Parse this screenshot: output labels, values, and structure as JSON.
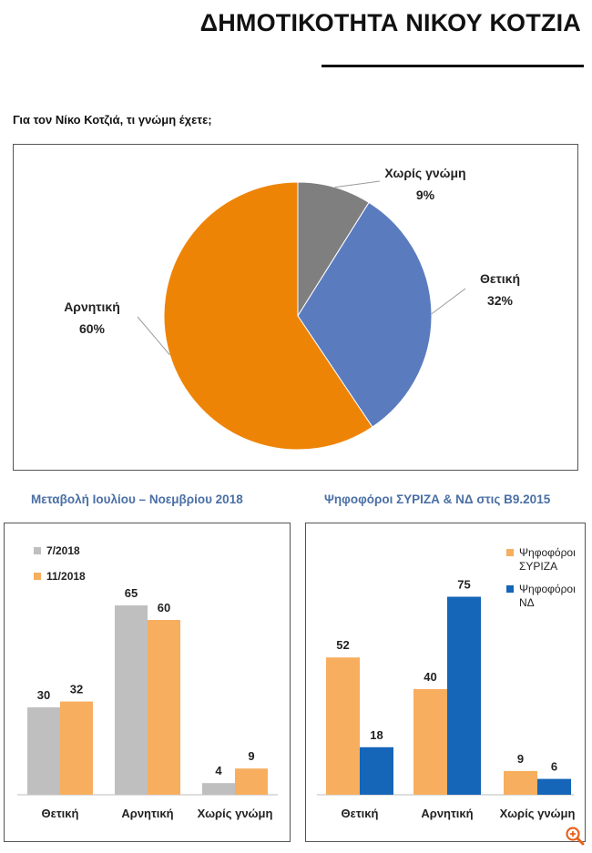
{
  "page": {
    "title": "ΔΗΜΟΤΙΚΟΤΗΤΑ ΝΙΚΟΥ ΚΟΤΖΙΑ",
    "question": "Για τον Νίκο Κοτζιά, τι γνώμη έχετε;"
  },
  "chart_data": [
    {
      "type": "pie",
      "title": "Για τον Νίκο Κοτζιά, τι γνώμη έχετε;",
      "categories": [
        "Χωρίς γνώμη",
        "Θετική",
        "Αρνητική"
      ],
      "values": [
        9,
        32,
        60
      ],
      "value_labels": [
        "9%",
        "32%",
        "60%"
      ],
      "colors": [
        "#7f7f7f",
        "#5b7bbf",
        "#ee8406"
      ]
    },
    {
      "type": "bar",
      "title": "Μεταβολή Ιουλίου – Νοεμβρίου 2018",
      "categories": [
        "Θετική",
        "Αρνητική",
        "Χωρίς γνώμη"
      ],
      "series": [
        {
          "name": "7/2018",
          "values": [
            30,
            65,
            4
          ],
          "color": "#bfbfbf"
        },
        {
          "name": "11/2018",
          "values": [
            32,
            60,
            9
          ],
          "color": "#f7ae5e"
        }
      ],
      "ylim": [
        0,
        80
      ]
    },
    {
      "type": "bar",
      "title": "Ψηφοφόροι ΣΥΡΙΖΑ & ΝΔ στις Β9.2015",
      "categories": [
        "Θετική",
        "Αρνητική",
        "Χωρίς γνώμη"
      ],
      "series": [
        {
          "name": "Ψηφοφόροι ΣΥΡΙΖΑ",
          "values": [
            52,
            40,
            9
          ],
          "color": "#f7ae5e"
        },
        {
          "name": "Ψηφοφόροι ΝΔ",
          "values": [
            18,
            75,
            6
          ],
          "color": "#1565b8"
        }
      ],
      "ylim": [
        0,
        80
      ]
    }
  ],
  "icons": {
    "zoom": "zoom-in-icon"
  },
  "colors": {
    "accent": "#e8631c",
    "subtitle": "#4a6fa5"
  }
}
